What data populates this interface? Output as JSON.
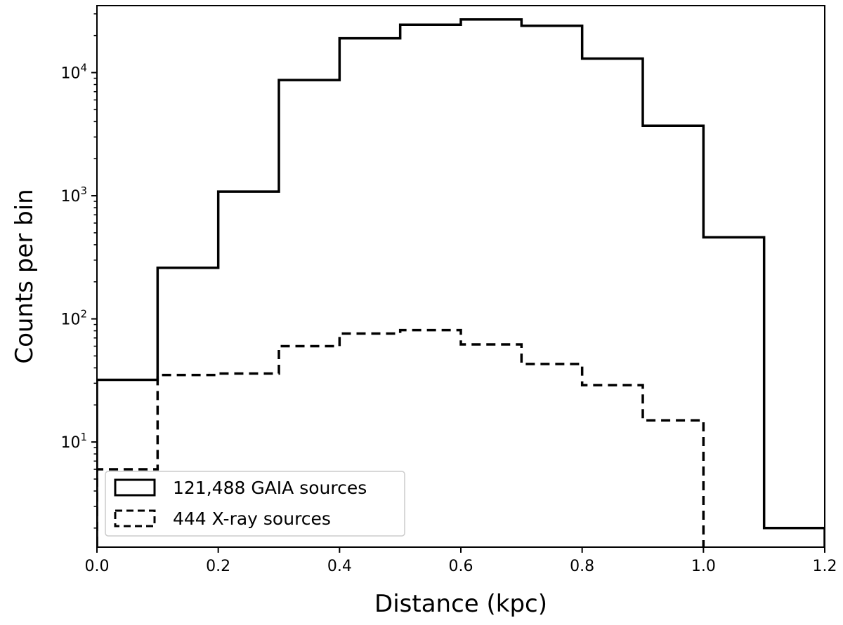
{
  "chart_data": {
    "type": "histogram",
    "xlabel": "Distance (kpc)",
    "ylabel": "Counts per bin",
    "xlim": [
      0.0,
      1.2
    ],
    "ylim": [
      1.4,
      35000
    ],
    "yscale": "log",
    "grid": false,
    "legend_position": "lower-left",
    "x_ticks": [
      {
        "value": 0.0,
        "label": "0.0"
      },
      {
        "value": 0.2,
        "label": "0.2"
      },
      {
        "value": 0.4,
        "label": "0.4"
      },
      {
        "value": 0.6,
        "label": "0.6"
      },
      {
        "value": 0.8,
        "label": "0.8"
      },
      {
        "value": 1.0,
        "label": "1.0"
      },
      {
        "value": 1.2,
        "label": "1.2"
      }
    ],
    "y_ticks": [
      {
        "value": 10,
        "base": "10",
        "exp": "1"
      },
      {
        "value": 100,
        "base": "10",
        "exp": "2"
      },
      {
        "value": 1000,
        "base": "10",
        "exp": "3"
      },
      {
        "value": 10000,
        "base": "10",
        "exp": "4"
      }
    ],
    "bin_edges": [
      0.0,
      0.1,
      0.2,
      0.3,
      0.4,
      0.5,
      0.6,
      0.7,
      0.8,
      0.9,
      1.0,
      1.1,
      1.2
    ],
    "series": [
      {
        "name": "121,488 GAIA sources",
        "style": "solid",
        "color": "#000000",
        "values": [
          32,
          260,
          1080,
          8700,
          19000,
          24500,
          27000,
          24000,
          13000,
          3700,
          460,
          2
        ]
      },
      {
        "name": "444 X-ray sources",
        "style": "dashed",
        "color": "#000000",
        "values": [
          6,
          35,
          36,
          60,
          76,
          81,
          62,
          43,
          29,
          15,
          0,
          0
        ]
      }
    ]
  }
}
